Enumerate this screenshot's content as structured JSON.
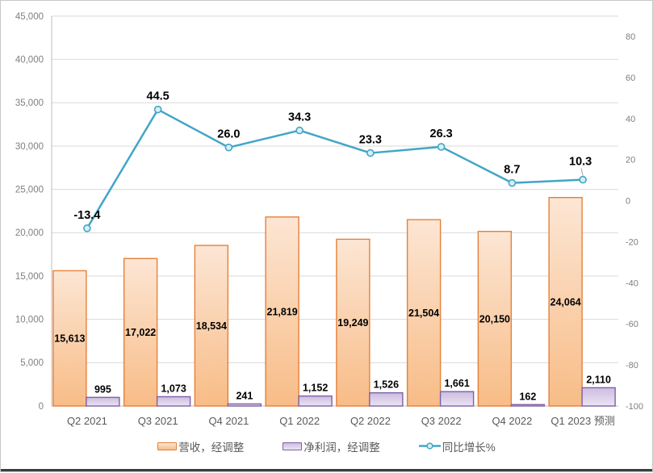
{
  "chart_data": {
    "type": "combo",
    "title": "",
    "categories": [
      "Q2 2021",
      "Q3 2021",
      "Q4 2021",
      "Q1 2022",
      "Q2 2022",
      "Q3 2022",
      "Q4 2022",
      "Q1 2023 预测"
    ],
    "series": [
      {
        "name": "营收，经调整",
        "type": "bar",
        "axis": "left",
        "values": [
          15613,
          17022,
          18534,
          21819,
          19249,
          21504,
          20150,
          24064
        ],
        "labels": [
          "15,613",
          "17,022",
          "18,534",
          "21,819",
          "19,249",
          "21,504",
          "20,150",
          "24,064"
        ],
        "label_position": "center",
        "fill_top": "#fce6d4",
        "fill_bottom": "#f8bc87",
        "border": "#e5803a"
      },
      {
        "name": "净利润，经调整",
        "type": "bar",
        "axis": "left",
        "values": [
          995,
          1073,
          241,
          1152,
          1526,
          1661,
          162,
          2110
        ],
        "labels": [
          "995",
          "1,073",
          "241",
          "1,152",
          "1,526",
          "1,661",
          "162",
          "2,110"
        ],
        "label_position": "outside-end",
        "fill_top": "#cdbcdf",
        "fill_bottom": "#eae4f4",
        "border": "#7e61a5"
      },
      {
        "name": "同比增长%",
        "type": "line",
        "axis": "right",
        "values": [
          -13.4,
          44.5,
          26.0,
          34.3,
          23.3,
          26.3,
          8.7,
          10.3
        ],
        "labels": [
          "-13.4",
          "44.5",
          "26.0",
          "34.3",
          "23.3",
          "26.3",
          "8.7",
          "10.3"
        ],
        "color": "#42a5c6",
        "marker_fill": "#d9eef5",
        "leader_index": 7
      }
    ],
    "left_axis": {
      "min": 0,
      "max": 45000,
      "step": 5000,
      "tick_labels": [
        "45,000",
        "40,000",
        "35,000",
        "30,000",
        "25,000",
        "20,000",
        "15,000",
        "10,000",
        "5,000",
        "0"
      ]
    },
    "right_axis": {
      "plot_min": -100,
      "plot_max": 90,
      "step": 20,
      "tick_values": [
        80,
        60,
        40,
        20,
        0,
        -20,
        -40,
        -60,
        -80,
        -100
      ],
      "tick_labels": [
        "80",
        "60",
        "40",
        "20",
        "0",
        "-20",
        "-40",
        "-60",
        "-80",
        "-100"
      ]
    },
    "grid": "horizontal",
    "legend_position": "bottom"
  },
  "colors": {
    "background": "#ffffff",
    "grid": "#d9d9d9",
    "axis_line": "#bfbfbf",
    "tick_text": "#7f7f7f",
    "category_text": "#595959",
    "data_label_text": "#000000",
    "legend_text": "#595959",
    "leader_line": "#9e9e9e",
    "frame_border": "#c8c8c8",
    "bottom_bar": "#3d3d3d"
  }
}
